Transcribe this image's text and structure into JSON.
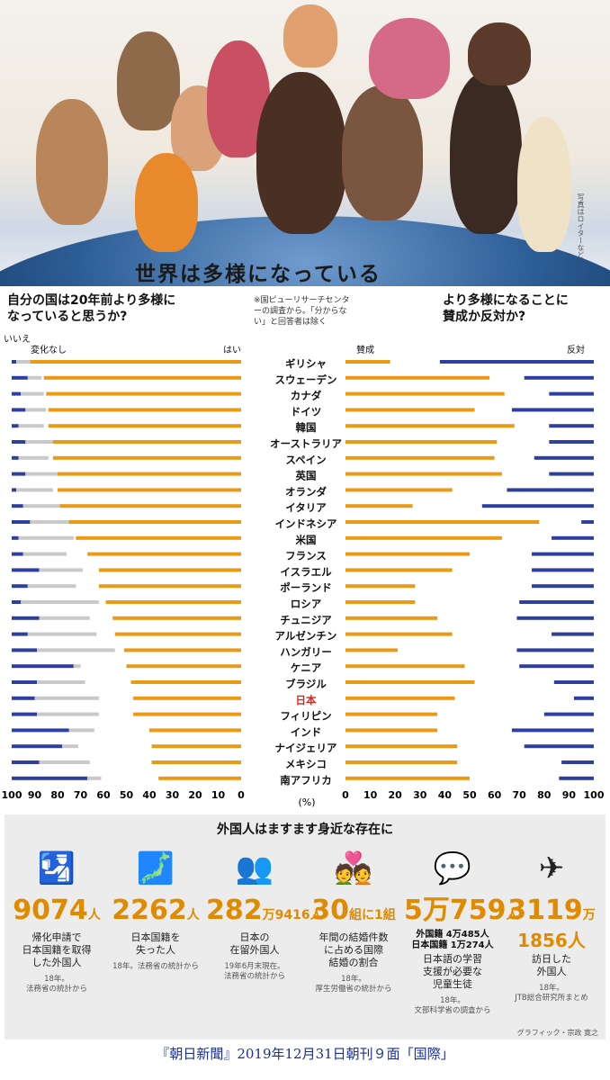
{
  "hero": {
    "title": "世界は多様になっている",
    "credit": "写真はロイターなど"
  },
  "question_left": "自分の国は20年前より多様に\nなっていると思うか?",
  "question_right": "より多様になることに\n賛成か反対か?",
  "note": "※国ピューリサーチセンターの調査から。「分からない」と回答者は除く",
  "labels": {
    "no": "いいえ",
    "nochange": "変化なし",
    "yes": "はい",
    "favor": "賛成",
    "oppose": "反対",
    "pct": "(%)"
  },
  "colors": {
    "yes": "#eb9a15",
    "favor": "#eb9a15",
    "no": "#2f3fa0",
    "oppose": "#2f3fa0",
    "nochange": "#c9c9c9",
    "japan": "#e1221c"
  },
  "chart_data": [
    {
      "type": "bar",
      "title": "自分の国は20年前より多様になっていると思うか?",
      "categories": [
        "ギリシャ",
        "スウェーデン",
        "カナダ",
        "ドイツ",
        "韓国",
        "オーストラリア",
        "スペイン",
        "英国",
        "オランダ",
        "イタリア",
        "インドネシア",
        "米国",
        "フランス",
        "イスラエル",
        "ポーランド",
        "ロシア",
        "チュニジア",
        "アルゼンチン",
        "ハンガリー",
        "ケニア",
        "ブラジル",
        "日本",
        "フィリピン",
        "インド",
        "ナイジェリア",
        "メキシコ",
        "南アフリカ"
      ],
      "series": [
        {
          "name": "いいえ",
          "values": [
            2,
            7,
            4,
            6,
            3,
            6,
            3,
            6,
            2,
            5,
            8,
            3,
            5,
            12,
            7,
            4,
            12,
            7,
            11,
            27,
            11,
            10,
            11,
            25,
            22,
            12,
            33
          ]
        },
        {
          "name": "変化なし",
          "values": [
            6,
            6,
            10,
            9,
            11,
            12,
            13,
            15,
            16,
            19,
            21,
            24,
            19,
            19,
            21,
            34,
            22,
            30,
            34,
            3,
            21,
            28,
            27,
            11,
            7,
            22,
            6
          ]
        },
        {
          "name": "はい",
          "values": [
            92,
            86,
            85,
            84,
            84,
            82,
            82,
            80,
            80,
            79,
            75,
            72,
            67,
            62,
            62,
            59,
            56,
            55,
            51,
            50,
            48,
            47,
            47,
            40,
            39,
            39,
            36
          ]
        }
      ],
      "xlim": [
        100,
        0
      ],
      "ticks": [
        100,
        90,
        80,
        70,
        60,
        50,
        40,
        30,
        20,
        10,
        0
      ],
      "xlabel": "(%)"
    },
    {
      "type": "bar",
      "title": "より多様になることに賛成か反対か?",
      "categories": [
        "ギリシャ",
        "スウェーデン",
        "カナダ",
        "ドイツ",
        "韓国",
        "オーストラリア",
        "スペイン",
        "英国",
        "オランダ",
        "イタリア",
        "インドネシア",
        "米国",
        "フランス",
        "イスラエル",
        "ポーランド",
        "ロシア",
        "チュニジア",
        "アルゼンチン",
        "ハンガリー",
        "ケニア",
        "ブラジル",
        "日本",
        "フィリピン",
        "インド",
        "ナイジェリア",
        "メキシコ",
        "南アフリカ"
      ],
      "series": [
        {
          "name": "賛成",
          "values": [
            18,
            58,
            64,
            52,
            68,
            61,
            60,
            63,
            43,
            27,
            78,
            63,
            50,
            43,
            28,
            28,
            37,
            43,
            21,
            48,
            52,
            44,
            37,
            37,
            45,
            45,
            50
          ]
        },
        {
          "name": "反対",
          "values": [
            62,
            28,
            18,
            33,
            18,
            18,
            24,
            18,
            35,
            45,
            5,
            17,
            25,
            25,
            25,
            30,
            31,
            17,
            31,
            30,
            16,
            8,
            20,
            33,
            28,
            13,
            14
          ]
        }
      ],
      "xlim": [
        0,
        100
      ],
      "ticks": [
        0,
        10,
        20,
        30,
        40,
        50,
        60,
        70,
        80,
        90,
        100
      ],
      "xlabel": ""
    }
  ],
  "highlight_category": "日本",
  "bottom": {
    "title": "外国人はますます身近な存在に",
    "stats": [
      {
        "icon": "passport-icon",
        "glyph": "🛂",
        "number": "9074",
        "unit": "人",
        "sub": "",
        "desc": "帰化申請で\n日本国籍を取得\nした外国人",
        "source": "18年。\n法務省の統計から"
      },
      {
        "icon": "japan-map-icon",
        "glyph": "🗾",
        "number": "2262",
        "unit": "人",
        "sub": "",
        "desc": "日本国籍を\n失った人",
        "source": "18年。法務省の統計から"
      },
      {
        "icon": "people-network-icon",
        "glyph": "👥",
        "number": "282",
        "unit": "万9416人",
        "sub": "",
        "desc": "日本の\n在留外国人",
        "source": "19年6月末現在。\n法務省の統計から"
      },
      {
        "icon": "wedding-couple-icon",
        "glyph": "💑",
        "number": "30",
        "unit": "組に1組",
        "sub": "",
        "desc": "年間の結婚件数\nに占める国際\n結婚の割合",
        "source": "18年。\n厚生労働省の統計から"
      },
      {
        "icon": "child-speech-icon",
        "glyph": "💬",
        "number": "5万759",
        "unit": "人",
        "sub": "外国籍 4万485人\n日本国籍 1万274人",
        "desc": "日本語の学習\n支援が必要な\n児童生徒",
        "source": "18年。\n文部科学省の調査から"
      },
      {
        "icon": "airplane-icon",
        "glyph": "✈",
        "number": "3119",
        "unit": "万",
        "sub2": "1856人",
        "desc": "訪日した\n外国人",
        "source": "18年。\nJTB総合研究所まとめ"
      }
    ],
    "graphic_credit": "グラフィック・宗政 寛之"
  },
  "caption": "『朝日新聞』2019年12月31日朝刊９面「国際」"
}
